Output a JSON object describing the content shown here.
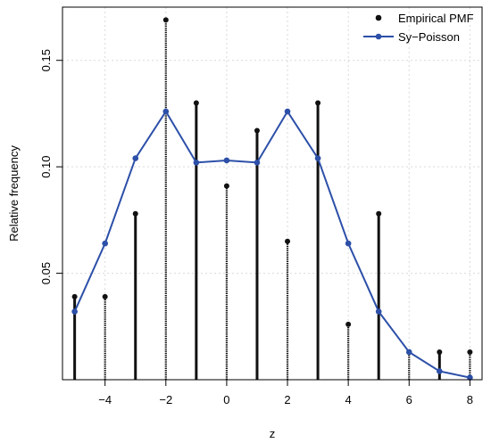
{
  "chart_data": {
    "type": "line",
    "xlabel": "z",
    "ylabel": "Relative frequency",
    "xlim": [
      -5.4,
      8.4
    ],
    "ylim": [
      0,
      0.175
    ],
    "x_ticks": [
      -4,
      -2,
      0,
      2,
      4,
      6,
      8
    ],
    "x_tick_labels": [
      "−4",
      "−2",
      "0",
      "2",
      "4",
      "6",
      "8"
    ],
    "y_ticks": [
      0.05,
      0.1,
      0.15
    ],
    "y_tick_labels": [
      "0.05",
      "0.10",
      "0.15"
    ],
    "grid": true,
    "legend_position": "top-right",
    "series": [
      {
        "name": "Empirical PMF",
        "kind": "stem",
        "color": "#111111",
        "x": [
          -5,
          -4,
          -3,
          -2,
          -1,
          0,
          1,
          2,
          3,
          4,
          5,
          6,
          7,
          8
        ],
        "values": [
          0.039,
          0.039,
          0.078,
          0.169,
          0.13,
          0.091,
          0.117,
          0.065,
          0.13,
          0.026,
          0.078,
          0.013,
          0.013,
          0.013
        ]
      },
      {
        "name": "Sy−Poisson",
        "kind": "line",
        "color": "#2c4fa8",
        "x": [
          -5,
          -4,
          -3,
          -2,
          -1,
          0,
          1,
          2,
          3,
          4,
          5,
          6,
          7,
          8
        ],
        "values": [
          0.032,
          0.064,
          0.104,
          0.126,
          0.102,
          0.103,
          0.102,
          0.126,
          0.104,
          0.064,
          0.032,
          0.013,
          0.004,
          0.001
        ]
      }
    ]
  }
}
